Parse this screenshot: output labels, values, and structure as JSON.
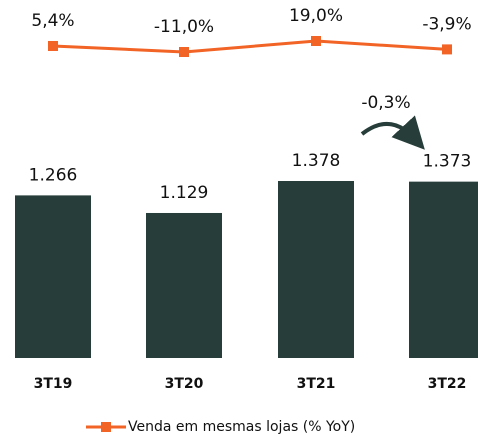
{
  "chart_data": {
    "type": "bar",
    "categories": [
      "3T19",
      "3T20",
      "3T21",
      "3T22"
    ],
    "values": [
      1266,
      1129,
      1378,
      1373
    ],
    "value_labels": [
      "1.266",
      "1.129",
      "1.378",
      "1.373"
    ],
    "color": "#263d39",
    "line": {
      "name": "Venda em mesmas lojas (% YoY)",
      "color": "#f26326",
      "values": [
        5.4,
        -11.0,
        19.0,
        -3.9
      ],
      "value_labels": [
        "5,4%",
        "-11,0%",
        "19,0%",
        "-3,9%"
      ]
    },
    "annotation": "-0,3%"
  }
}
